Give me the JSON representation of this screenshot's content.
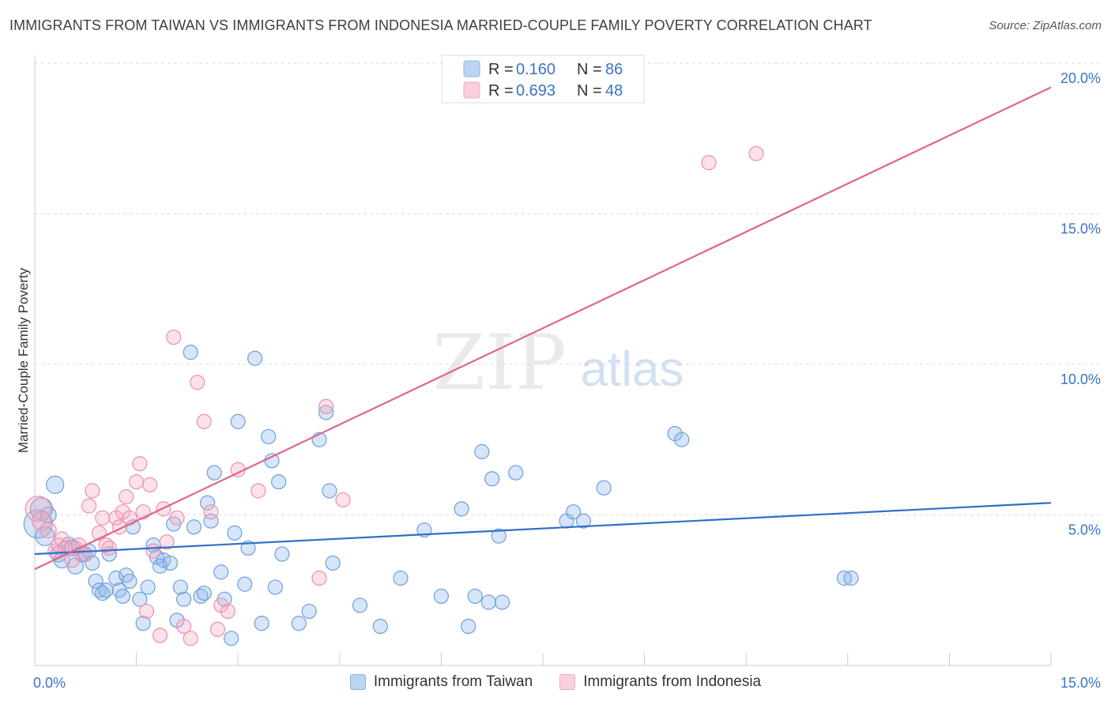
{
  "title": "IMMIGRANTS FROM TAIWAN VS IMMIGRANTS FROM INDONESIA MARRIED-COUPLE FAMILY POVERTY CORRELATION CHART",
  "source": "Source: ZipAtlas.com",
  "watermark": {
    "zip": "ZIP",
    "atlas": "atlas"
  },
  "colors": {
    "taiwan": "#8ab4e8",
    "taiwan_line": "#2f6fcc",
    "indonesia": "#f4a9c0",
    "indonesia_line": "#e0648f",
    "tick": "#3a73c6"
  },
  "legend": {
    "taiwan": {
      "r_label": "R =",
      "r_value": "0.160",
      "n_label": "N =",
      "n_value": "86"
    },
    "indonesia": {
      "r_label": "R =",
      "r_value": "0.693",
      "n_label": "N =",
      "n_value": "48"
    }
  },
  "bottom_legend": {
    "taiwan": "Immigrants from Taiwan",
    "indonesia": "Immigrants from Indonesia"
  },
  "chart_data": {
    "type": "scatter",
    "title": "IMMIGRANTS FROM TAIWAN VS IMMIGRANTS FROM INDONESIA MARRIED-COUPLE FAMILY POVERTY CORRELATION CHART",
    "xlabel": "",
    "ylabel": "Married-Couple Family Poverty",
    "xlim": [
      0,
      15
    ],
    "ylim": [
      0,
      20
    ],
    "x_tick_labels": [
      "0.0%",
      "15.0%"
    ],
    "y_ticks": [
      5,
      10,
      15,
      20
    ],
    "y_tick_labels": [
      "5.0%",
      "10.0%",
      "15.0%",
      "20.0%"
    ],
    "grid": true,
    "series": [
      {
        "name": "Immigrants from Taiwan",
        "r": 0.16,
        "n": 86,
        "trend": {
          "x": [
            0,
            15
          ],
          "y": [
            3.7,
            5.4
          ]
        },
        "points": [
          [
            0.05,
            4.7,
            18
          ],
          [
            0.1,
            5.2,
            14
          ],
          [
            0.15,
            4.3,
            12
          ],
          [
            0.2,
            5.0,
            10
          ],
          [
            0.3,
            6.0,
            11
          ],
          [
            0.35,
            3.7,
            10
          ],
          [
            0.4,
            3.5,
            10
          ],
          [
            0.5,
            4.0,
            10
          ],
          [
            0.55,
            3.9,
            10
          ],
          [
            0.6,
            3.3,
            10
          ],
          [
            0.7,
            3.7,
            10
          ],
          [
            0.75,
            3.7,
            9
          ],
          [
            0.8,
            3.8,
            9
          ],
          [
            0.85,
            3.4,
            9
          ],
          [
            0.9,
            2.8,
            9
          ],
          [
            0.95,
            2.5,
            9
          ],
          [
            1.0,
            2.4,
            9
          ],
          [
            1.05,
            2.5,
            9
          ],
          [
            1.1,
            3.7,
            9
          ],
          [
            1.2,
            2.9,
            9
          ],
          [
            1.25,
            2.5,
            9
          ],
          [
            1.3,
            2.3,
            9
          ],
          [
            1.35,
            3.0,
            9
          ],
          [
            1.4,
            2.8,
            9
          ],
          [
            1.45,
            4.6,
            9
          ],
          [
            1.55,
            2.2,
            9
          ],
          [
            1.6,
            1.4,
            9
          ],
          [
            1.67,
            2.6,
            9
          ],
          [
            1.75,
            4.0,
            9
          ],
          [
            1.8,
            3.6,
            9
          ],
          [
            1.85,
            3.3,
            9
          ],
          [
            1.9,
            3.5,
            9
          ],
          [
            2.0,
            3.4,
            9
          ],
          [
            2.05,
            4.7,
            9
          ],
          [
            2.1,
            1.5,
            9
          ],
          [
            2.15,
            2.6,
            9
          ],
          [
            2.2,
            2.2,
            9
          ],
          [
            2.3,
            10.4,
            9
          ],
          [
            2.35,
            4.6,
            9
          ],
          [
            2.45,
            2.3,
            9
          ],
          [
            2.5,
            2.4,
            9
          ],
          [
            2.55,
            5.4,
            9
          ],
          [
            2.6,
            4.8,
            9
          ],
          [
            2.65,
            6.4,
            9
          ],
          [
            2.75,
            3.1,
            9
          ],
          [
            2.8,
            2.2,
            9
          ],
          [
            2.9,
            0.9,
            9
          ],
          [
            2.95,
            4.4,
            9
          ],
          [
            3.0,
            8.1,
            9
          ],
          [
            3.1,
            2.7,
            9
          ],
          [
            3.15,
            3.9,
            9
          ],
          [
            3.25,
            10.2,
            9
          ],
          [
            3.35,
            1.4,
            9
          ],
          [
            3.45,
            7.6,
            9
          ],
          [
            3.5,
            6.8,
            9
          ],
          [
            3.55,
            2.6,
            9
          ],
          [
            3.6,
            6.1,
            9
          ],
          [
            3.65,
            3.7,
            9
          ],
          [
            3.9,
            1.4,
            9
          ],
          [
            4.05,
            1.8,
            9
          ],
          [
            4.2,
            7.5,
            9
          ],
          [
            4.3,
            8.4,
            9
          ],
          [
            4.35,
            5.8,
            9
          ],
          [
            4.4,
            3.4,
            9
          ],
          [
            4.8,
            2.0,
            9
          ],
          [
            5.1,
            1.3,
            9
          ],
          [
            5.4,
            2.9,
            9
          ],
          [
            5.75,
            4.5,
            9
          ],
          [
            6.0,
            2.3,
            9
          ],
          [
            6.3,
            5.2,
            9
          ],
          [
            6.4,
            1.3,
            9
          ],
          [
            6.5,
            2.3,
            9
          ],
          [
            6.6,
            7.1,
            9
          ],
          [
            6.7,
            2.1,
            9
          ],
          [
            6.75,
            6.2,
            9
          ],
          [
            6.85,
            4.3,
            9
          ],
          [
            6.9,
            2.1,
            9
          ],
          [
            7.1,
            6.4,
            9
          ],
          [
            7.85,
            4.8,
            9
          ],
          [
            7.95,
            5.1,
            9
          ],
          [
            8.1,
            4.8,
            9
          ],
          [
            8.4,
            5.9,
            9
          ],
          [
            9.45,
            7.7,
            9
          ],
          [
            9.55,
            7.5,
            9
          ],
          [
            11.95,
            2.9,
            9
          ],
          [
            12.05,
            2.9,
            9
          ]
        ]
      },
      {
        "name": "Immigrants from Indonesia",
        "r": 0.693,
        "n": 48,
        "trend": {
          "x": [
            0,
            15
          ],
          "y": [
            3.2,
            19.2
          ]
        },
        "points": [
          [
            0.05,
            5.2,
            16
          ],
          [
            0.1,
            4.8,
            12
          ],
          [
            0.2,
            4.5,
            10
          ],
          [
            0.3,
            3.8,
            9
          ],
          [
            0.35,
            4.0,
            9
          ],
          [
            0.4,
            4.2,
            9
          ],
          [
            0.45,
            3.9,
            9
          ],
          [
            0.55,
            3.5,
            9
          ],
          [
            0.6,
            3.9,
            9
          ],
          [
            0.65,
            4.0,
            9
          ],
          [
            0.75,
            3.7,
            9
          ],
          [
            0.8,
            5.3,
            9
          ],
          [
            0.85,
            5.8,
            9
          ],
          [
            0.95,
            4.4,
            9
          ],
          [
            1.0,
            4.9,
            9
          ],
          [
            1.05,
            4.0,
            9
          ],
          [
            1.1,
            3.9,
            9
          ],
          [
            1.2,
            4.9,
            9
          ],
          [
            1.25,
            4.6,
            9
          ],
          [
            1.3,
            5.1,
            9
          ],
          [
            1.35,
            5.6,
            9
          ],
          [
            1.4,
            4.9,
            9
          ],
          [
            1.5,
            6.1,
            9
          ],
          [
            1.55,
            6.7,
            9
          ],
          [
            1.6,
            5.1,
            9
          ],
          [
            1.65,
            1.8,
            9
          ],
          [
            1.7,
            6.0,
            9
          ],
          [
            1.75,
            3.8,
            9
          ],
          [
            1.85,
            1.0,
            9
          ],
          [
            1.9,
            5.2,
            9
          ],
          [
            1.95,
            4.1,
            9
          ],
          [
            2.05,
            10.9,
            9
          ],
          [
            2.1,
            4.9,
            9
          ],
          [
            2.2,
            1.3,
            9
          ],
          [
            2.3,
            0.9,
            9
          ],
          [
            2.4,
            9.4,
            9
          ],
          [
            2.5,
            8.1,
            9
          ],
          [
            2.6,
            5.1,
            9
          ],
          [
            2.7,
            1.2,
            9
          ],
          [
            2.75,
            2.0,
            9
          ],
          [
            2.85,
            1.8,
            9
          ],
          [
            3.0,
            6.5,
            9
          ],
          [
            3.3,
            5.8,
            9
          ],
          [
            4.2,
            2.9,
            9
          ],
          [
            4.3,
            8.6,
            9
          ],
          [
            4.55,
            5.5,
            9
          ],
          [
            9.95,
            16.7,
            9
          ],
          [
            10.65,
            17.0,
            9
          ]
        ]
      }
    ]
  }
}
